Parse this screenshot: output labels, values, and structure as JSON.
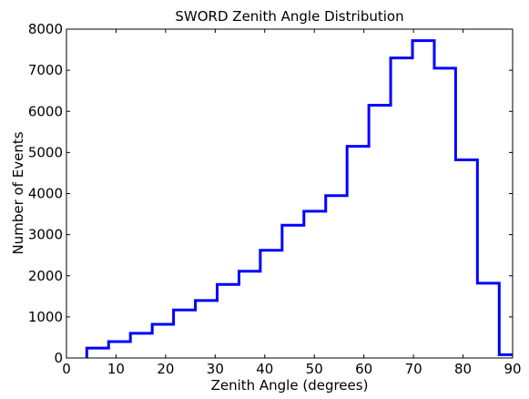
{
  "chart_data": {
    "type": "histogram",
    "title": "SWORD Zenith Angle Distribution",
    "xlabel": "Zenith Angle (degrees)",
    "ylabel": "Number of Events",
    "xlim": [
      0,
      90
    ],
    "ylim": [
      0,
      8000
    ],
    "xticks": [
      0,
      10,
      20,
      30,
      40,
      50,
      60,
      70,
      80,
      90
    ],
    "yticks": [
      0,
      1000,
      2000,
      3000,
      4000,
      5000,
      6000,
      7000,
      8000
    ],
    "grid": false,
    "series": [
      {
        "color": "#0000ff",
        "bin_edges": [
          4.1,
          8.5,
          12.9,
          17.3,
          21.6,
          26.0,
          30.4,
          34.8,
          39.1,
          43.5,
          47.9,
          52.3,
          56.6,
          61.0,
          65.4,
          69.8,
          74.2,
          78.5,
          82.9,
          87.3,
          90
        ],
        "counts": [
          240,
          400,
          600,
          820,
          1170,
          1400,
          1790,
          2110,
          2620,
          3230,
          3570,
          3950,
          5150,
          6150,
          7300,
          7720,
          7050,
          4820,
          1820,
          80
        ]
      }
    ]
  }
}
